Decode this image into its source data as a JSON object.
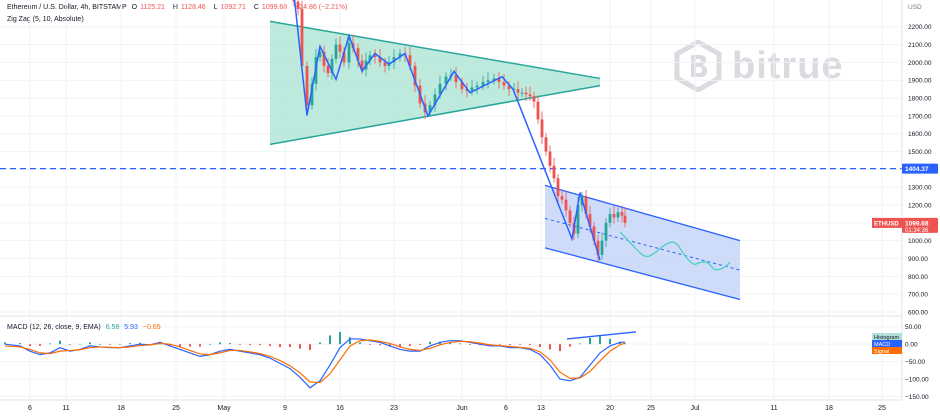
{
  "header": {
    "symbol": "Ethereum / U.S. Dollar, 4h, BITSTAMP",
    "o_label": "O",
    "o": "1125.21",
    "h_label": "H",
    "h": "1128.46",
    "l_label": "L",
    "l": "1092.71",
    "c_label": "C",
    "c": "1099.68",
    "change": "−24.86 (−2.21%)",
    "zigzag": "Zig Zag (5, 10, Absolute)"
  },
  "watermark": {
    "text": "bitrue",
    "color": "#d9dbdf"
  },
  "macd_legend": {
    "label": "MACD (12, 26, close, 9, EMA)",
    "v1": "6.58",
    "v2": "5.93",
    "v3": "−0.65"
  },
  "chart_data": [
    {
      "type": "candlestick",
      "currency_label": "USD",
      "ylim": [
        600,
        2350
      ],
      "y_ticks": [
        600,
        700,
        800,
        900,
        1000,
        1100,
        1200,
        1300,
        1400,
        1500,
        1600,
        1700,
        1800,
        1900,
        2000,
        2100,
        2200
      ],
      "x_ticks": [
        "6",
        "11",
        "18",
        "25",
        "May",
        "9",
        "16",
        "23",
        "Jun",
        "6",
        "13",
        "20",
        "25",
        "Jul",
        "11",
        "18",
        "25"
      ],
      "x_tick_positions": [
        30,
        66,
        121,
        176,
        224,
        285,
        340,
        394,
        462,
        506,
        541,
        610,
        651,
        695,
        774,
        829,
        882
      ],
      "last_price": {
        "label": "ETHUSD",
        "value": "1099.68",
        "countdown": "01:34:36",
        "color": "#ef5350"
      },
      "horizontal_line": {
        "value": 1404.37,
        "label": "1404.37",
        "color": "#2962ff"
      },
      "zigzag": {
        "color": "#2962ff",
        "points": [
          [
            294,
            2380
          ],
          [
            307,
            1702
          ],
          [
            320,
            2090
          ],
          [
            336,
            1905
          ],
          [
            349,
            2150
          ],
          [
            362,
            1950
          ],
          [
            375,
            2050
          ],
          [
            389,
            1990
          ],
          [
            405,
            2050
          ],
          [
            428,
            1700
          ],
          [
            454,
            1950
          ],
          [
            470,
            1830
          ],
          [
            502,
            1920
          ],
          [
            513,
            1850
          ],
          [
            572,
            1010
          ],
          [
            580,
            1270
          ],
          [
            600,
            890
          ]
        ]
      },
      "triangle": {
        "fill": "#b2e6d6",
        "stroke": "#26a69a",
        "upper": [
          [
            270,
            2230
          ],
          [
            600,
            1910
          ]
        ],
        "lower": [
          [
            270,
            1540
          ],
          [
            600,
            1870
          ]
        ]
      },
      "channel": {
        "fill": "#c7d6f8",
        "stroke": "#2962ff",
        "upper": [
          [
            545,
            1310
          ],
          [
            740,
            1000
          ]
        ],
        "lower": [
          [
            545,
            960
          ],
          [
            740,
            670
          ]
        ],
        "midline": [
          [
            545,
            1125
          ],
          [
            740,
            835
          ]
        ]
      },
      "projection": {
        "color": "#4dd0c4",
        "points": [
          [
            620,
            1050
          ],
          [
            630,
            990
          ],
          [
            645,
            900
          ],
          [
            655,
            930
          ],
          [
            665,
            980
          ],
          [
            675,
            1000
          ],
          [
            683,
            930
          ],
          [
            693,
            860
          ],
          [
            700,
            880
          ],
          [
            708,
            880
          ],
          [
            715,
            830
          ],
          [
            725,
            850
          ],
          [
            730,
            880
          ]
        ]
      },
      "candles_seed": [
        [
          294,
          2340
        ],
        [
          298,
          2300
        ],
        [
          302,
          1980
        ],
        [
          307,
          1760
        ],
        [
          312,
          1880
        ],
        [
          316,
          2030
        ],
        [
          320,
          2060
        ],
        [
          324,
          1980
        ],
        [
          328,
          1940
        ],
        [
          332,
          2020
        ],
        [
          336,
          2100
        ],
        [
          340,
          2060
        ],
        [
          344,
          2000
        ],
        [
          349,
          2110
        ],
        [
          353,
          2080
        ],
        [
          358,
          2010
        ],
        [
          362,
          1960
        ],
        [
          366,
          2010
        ],
        [
          370,
          2040
        ],
        [
          375,
          2030
        ],
        [
          380,
          2000
        ],
        [
          385,
          1980
        ],
        [
          389,
          2000
        ],
        [
          394,
          2030
        ],
        [
          400,
          2050
        ],
        [
          405,
          2040
        ],
        [
          410,
          1980
        ],
        [
          415,
          1870
        ],
        [
          420,
          1770
        ],
        [
          425,
          1720
        ],
        [
          430,
          1760
        ],
        [
          435,
          1820
        ],
        [
          440,
          1880
        ],
        [
          446,
          1920
        ],
        [
          451,
          1930
        ],
        [
          456,
          1890
        ],
        [
          462,
          1850
        ],
        [
          467,
          1840
        ],
        [
          472,
          1860
        ],
        [
          477,
          1870
        ],
        [
          483,
          1890
        ],
        [
          488,
          1900
        ],
        [
          494,
          1910
        ],
        [
          499,
          1890
        ],
        [
          504,
          1870
        ],
        [
          509,
          1850
        ],
        [
          514,
          1850
        ],
        [
          518,
          1830
        ],
        [
          522,
          1830
        ],
        [
          526,
          1820
        ],
        [
          530,
          1810
        ],
        [
          534,
          1780
        ],
        [
          538,
          1680
        ],
        [
          542,
          1580
        ],
        [
          546,
          1500
        ],
        [
          550,
          1420
        ],
        [
          554,
          1350
        ],
        [
          558,
          1250
        ],
        [
          562,
          1230
        ],
        [
          566,
          1170
        ],
        [
          570,
          1100
        ],
        [
          574,
          1040
        ],
        [
          578,
          1200
        ],
        [
          582,
          1250
        ],
        [
          586,
          1150
        ],
        [
          590,
          1080
        ],
        [
          594,
          1000
        ],
        [
          598,
          920
        ],
        [
          602,
          1000
        ],
        [
          606,
          1100
        ],
        [
          610,
          1150
        ],
        [
          614,
          1130
        ],
        [
          618,
          1160
        ],
        [
          622,
          1140
        ],
        [
          625,
          1100
        ]
      ]
    },
    {
      "type": "macd",
      "label": "MACD (12, 26, close, 9, EMA)",
      "ylim": [
        -160,
        75
      ],
      "y_ticks": [
        50,
        0,
        -50,
        -100,
        -150
      ],
      "y_tick_labels": [
        "50.00",
        "0.00",
        "−50.00",
        "−100.00",
        "−150.00"
      ],
      "legend": [
        "Histogram",
        "MACD",
        "Signal"
      ],
      "colors": {
        "histogram_up": "#26a69a",
        "histogram_down": "#ef5350",
        "macd": "#2962ff",
        "signal": "#ff6d00",
        "hist_label_bg": "#b2dfdb"
      },
      "macd_line": [
        [
          5,
          0
        ],
        [
          20,
          -5
        ],
        [
          30,
          -20
        ],
        [
          40,
          -30
        ],
        [
          50,
          -25
        ],
        [
          60,
          -10
        ],
        [
          70,
          -20
        ],
        [
          80,
          -15
        ],
        [
          90,
          -5
        ],
        [
          100,
          -8
        ],
        [
          110,
          -10
        ],
        [
          120,
          -10
        ],
        [
          130,
          -5
        ],
        [
          140,
          0
        ],
        [
          150,
          -2
        ],
        [
          160,
          5
        ],
        [
          170,
          -5
        ],
        [
          180,
          -15
        ],
        [
          190,
          -25
        ],
        [
          200,
          -35
        ],
        [
          210,
          -30
        ],
        [
          220,
          -20
        ],
        [
          230,
          -15
        ],
        [
          240,
          -20
        ],
        [
          250,
          -25
        ],
        [
          260,
          -30
        ],
        [
          270,
          -40
        ],
        [
          280,
          -55
        ],
        [
          290,
          -70
        ],
        [
          300,
          -95
        ],
        [
          310,
          -125
        ],
        [
          320,
          -105
        ],
        [
          330,
          -60
        ],
        [
          340,
          -10
        ],
        [
          350,
          15
        ],
        [
          360,
          15
        ],
        [
          370,
          10
        ],
        [
          380,
          5
        ],
        [
          390,
          -5
        ],
        [
          400,
          -15
        ],
        [
          410,
          -20
        ],
        [
          420,
          -20
        ],
        [
          430,
          -5
        ],
        [
          440,
          5
        ],
        [
          450,
          10
        ],
        [
          460,
          10
        ],
        [
          470,
          5
        ],
        [
          480,
          0
        ],
        [
          490,
          -5
        ],
        [
          500,
          -5
        ],
        [
          510,
          -10
        ],
        [
          520,
          -10
        ],
        [
          530,
          -15
        ],
        [
          540,
          -30
        ],
        [
          550,
          -60
        ],
        [
          560,
          -100
        ],
        [
          570,
          -105
        ],
        [
          580,
          -95
        ],
        [
          590,
          -60
        ],
        [
          600,
          -25
        ],
        [
          610,
          -5
        ],
        [
          620,
          5
        ],
        [
          625,
          6
        ]
      ],
      "signal_line": [
        [
          5,
          -5
        ],
        [
          20,
          -8
        ],
        [
          30,
          -15
        ],
        [
          40,
          -25
        ],
        [
          50,
          -27
        ],
        [
          60,
          -20
        ],
        [
          70,
          -18
        ],
        [
          80,
          -16
        ],
        [
          90,
          -10
        ],
        [
          100,
          -8
        ],
        [
          110,
          -9
        ],
        [
          120,
          -10
        ],
        [
          130,
          -8
        ],
        [
          140,
          -4
        ],
        [
          150,
          -2
        ],
        [
          160,
          2
        ],
        [
          170,
          0
        ],
        [
          180,
          -8
        ],
        [
          190,
          -18
        ],
        [
          200,
          -28
        ],
        [
          210,
          -30
        ],
        [
          220,
          -25
        ],
        [
          230,
          -18
        ],
        [
          240,
          -18
        ],
        [
          250,
          -22
        ],
        [
          260,
          -27
        ],
        [
          270,
          -35
        ],
        [
          280,
          -47
        ],
        [
          290,
          -62
        ],
        [
          300,
          -82
        ],
        [
          310,
          -108
        ],
        [
          320,
          -110
        ],
        [
          330,
          -85
        ],
        [
          340,
          -45
        ],
        [
          350,
          -5
        ],
        [
          360,
          10
        ],
        [
          370,
          12
        ],
        [
          380,
          8
        ],
        [
          390,
          2
        ],
        [
          400,
          -8
        ],
        [
          410,
          -15
        ],
        [
          420,
          -18
        ],
        [
          430,
          -12
        ],
        [
          440,
          -2
        ],
        [
          450,
          5
        ],
        [
          460,
          8
        ],
        [
          470,
          7
        ],
        [
          480,
          3
        ],
        [
          490,
          -2
        ],
        [
          500,
          -4
        ],
        [
          510,
          -7
        ],
        [
          520,
          -9
        ],
        [
          530,
          -12
        ],
        [
          540,
          -22
        ],
        [
          550,
          -45
        ],
        [
          560,
          -80
        ],
        [
          570,
          -98
        ],
        [
          580,
          -97
        ],
        [
          590,
          -78
        ],
        [
          600,
          -48
        ],
        [
          610,
          -20
        ],
        [
          620,
          -2
        ],
        [
          625,
          3
        ]
      ],
      "divergence_line": {
        "color": "#2962ff",
        "points": [
          [
            567,
            15
          ],
          [
            636,
            35
          ]
        ]
      }
    }
  ]
}
